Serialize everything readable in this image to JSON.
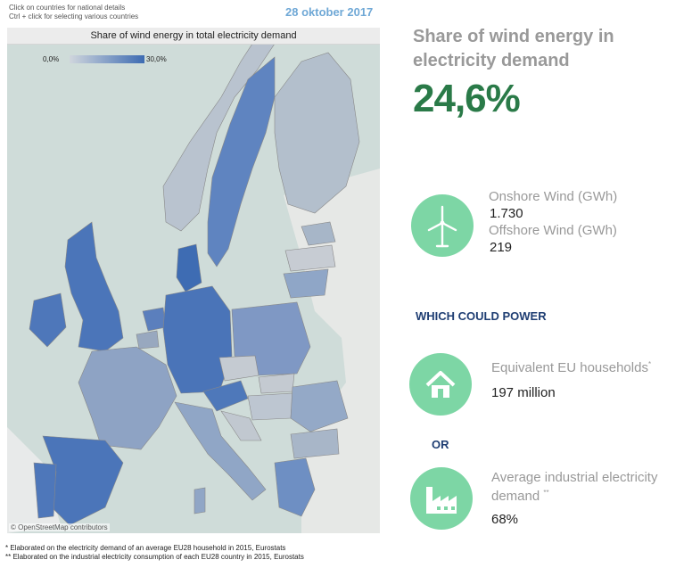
{
  "hints": {
    "line1": "Click on countries for national details",
    "line2": "Ctrl + click  for selecting various countries"
  },
  "date": "28 oktober 2017",
  "map": {
    "title": "Share of wind energy in total electricity demand",
    "legend_min": "0,0%",
    "legend_max": "30,0%",
    "attribution": "© OpenStreetMap contributors",
    "color_low": "#d0d6dd",
    "color_high": "#3d6bb2"
  },
  "kpi": {
    "title": "Share of wind energy in electricity demand",
    "value": "24,6%",
    "value_color": "#2a7a48"
  },
  "wind": {
    "icon": "wind-turbine-icon",
    "onshore_label": "Onshore Wind (GWh)",
    "onshore_value": "1.730",
    "offshore_label": "Offshore Wind (GWh)",
    "offshore_value": "219"
  },
  "power_heading": "WHICH COULD POWER",
  "households": {
    "icon": "house-icon",
    "label": "Equivalent EU households",
    "marker": "*",
    "value": "197 million"
  },
  "or_label": "OR",
  "industry": {
    "icon": "factory-icon",
    "label_line1": "Average industrial electricity",
    "label_line2": "demand ",
    "marker": "**",
    "value": "68%"
  },
  "footnotes": {
    "note1": "* Elaborated on the electricity demand of an average EU28 household in 2015, Eurostats",
    "note2": "** Elaborated on the industrial electricity consumption of each EU28 country in 2015, Eurostats"
  },
  "accent_circle": "#7dd6a5",
  "heading_color": "#1f3e73"
}
